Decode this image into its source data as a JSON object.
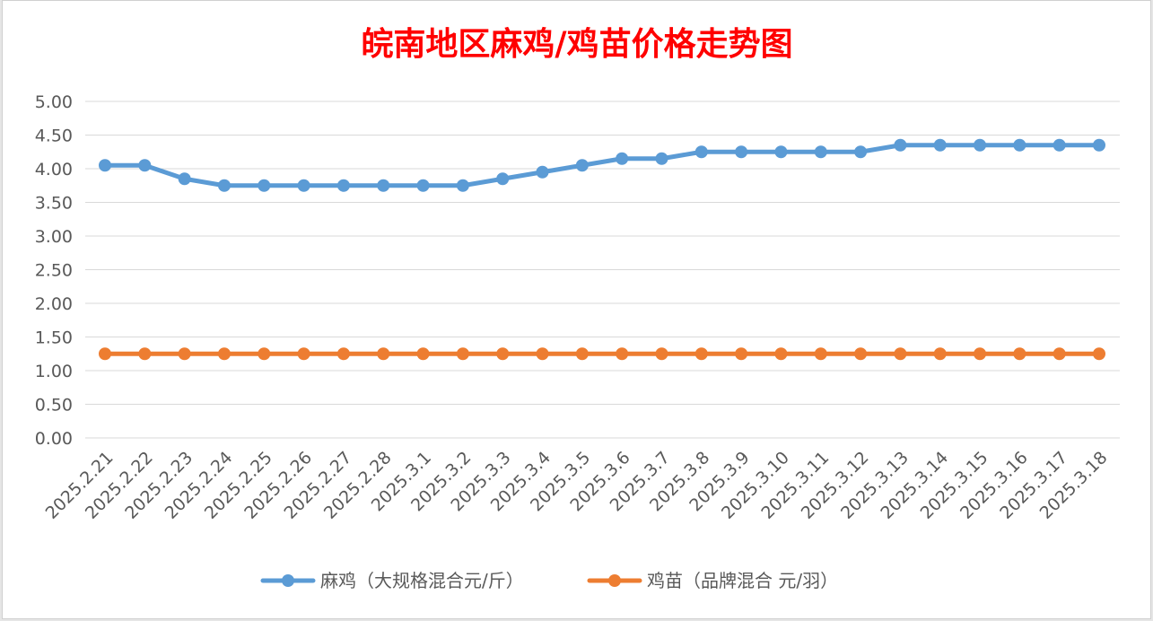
{
  "chart_data": {
    "type": "line",
    "title": "皖南地区麻鸡/鸡苗价格走势图",
    "xlabel": "",
    "ylabel": "",
    "ylim": [
      0,
      5
    ],
    "y_ticks": [
      "0.00",
      "0.50",
      "1.00",
      "1.50",
      "2.00",
      "2.50",
      "3.00",
      "3.50",
      "4.00",
      "4.50",
      "5.00"
    ],
    "grid": true,
    "legend_position": "bottom",
    "categories": [
      "2025.2.21",
      "2025.2.22",
      "2025.2.23",
      "2025.2.24",
      "2025.2.25",
      "2025.2.26",
      "2025.2.27",
      "2025.2.28",
      "2025.3.1",
      "2025.3.2",
      "2025.3.3",
      "2025.3.4",
      "2025.3.5",
      "2025.3.6",
      "2025.3.7",
      "2025.3.8",
      "2025.3.9",
      "2025.3.10",
      "2025.3.11",
      "2025.3.12",
      "2025.3.13",
      "2025.3.14",
      "2025.3.15",
      "2025.3.16",
      "2025.3.17",
      "2025.3.18"
    ],
    "series": [
      {
        "name": "麻鸡（大规格混合元/斤）",
        "color": "#5b9bd5",
        "values": [
          4.05,
          4.05,
          3.85,
          3.75,
          3.75,
          3.75,
          3.75,
          3.75,
          3.75,
          3.75,
          3.85,
          3.95,
          4.05,
          4.15,
          4.15,
          4.25,
          4.25,
          4.25,
          4.25,
          4.25,
          4.35,
          4.35,
          4.35,
          4.35,
          4.35,
          4.35
        ]
      },
      {
        "name": "鸡苗（品牌混合 元/羽）",
        "color": "#ed7d31",
        "values": [
          1.25,
          1.25,
          1.25,
          1.25,
          1.25,
          1.25,
          1.25,
          1.25,
          1.25,
          1.25,
          1.25,
          1.25,
          1.25,
          1.25,
          1.25,
          1.25,
          1.25,
          1.25,
          1.25,
          1.25,
          1.25,
          1.25,
          1.25,
          1.25,
          1.25,
          1.25
        ]
      }
    ],
    "title_color": "#ff0000",
    "gridline_color": "#d9d9d9",
    "axis_text_color": "#595959"
  }
}
